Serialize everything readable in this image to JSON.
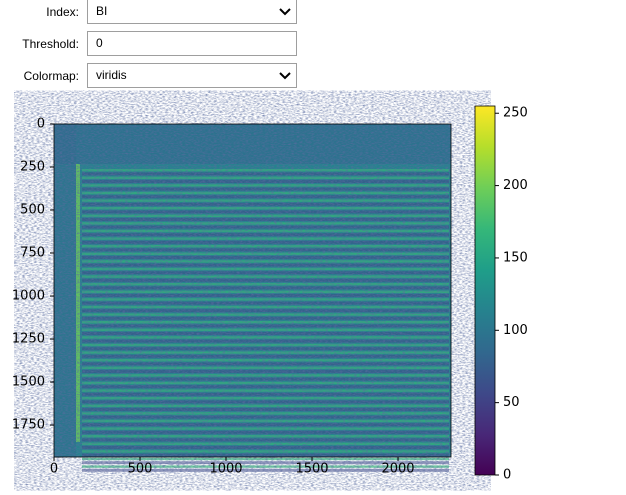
{
  "controls": [
    {
      "label": "Index:",
      "value": "BI"
    },
    {
      "label": "Threshold:",
      "value": "0"
    },
    {
      "label": "Colormap:",
      "value": "viridis"
    }
  ],
  "chart_data": {
    "type": "image",
    "xlim": [
      0,
      2308
    ],
    "ylim": [
      1936,
      0
    ],
    "xticks": [
      0,
      500,
      1000,
      1500,
      2000
    ],
    "yticks": [
      0,
      250,
      500,
      750,
      1000,
      1250,
      1500,
      1750
    ],
    "colors": [
      "#440154",
      "#482878",
      "#3e4989",
      "#31688e",
      "#26828e",
      "#1f9e89",
      "#35b779",
      "#6ece58",
      "#b5de2b",
      "#fde725"
    ],
    "colorbar": {
      "lim": [
        0,
        255
      ],
      "ticks": [
        0,
        50,
        100,
        150,
        200,
        250
      ]
    }
  }
}
